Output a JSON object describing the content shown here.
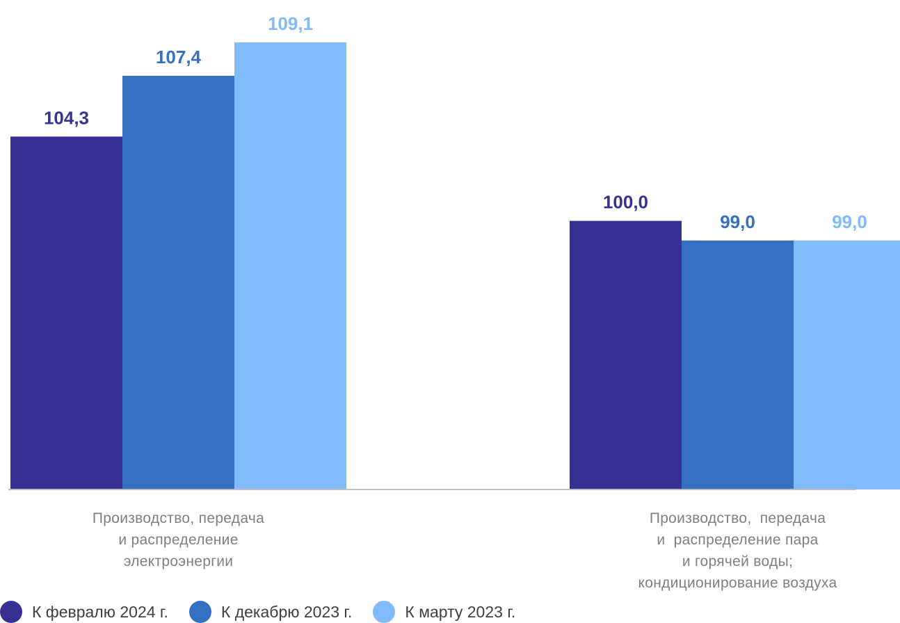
{
  "chart_data": {
    "type": "bar",
    "categories": [
      [
        "Производство, передача",
        "и распределение",
        "электроэнергии"
      ],
      [
        "Производство,  передача",
        "и  распределение пара",
        "и горячей воды;",
        "кондиционирование воздуха"
      ]
    ],
    "series": [
      {
        "name": "К февралю 2024 г.",
        "values": [
          104.3,
          100.0
        ],
        "labels": [
          "104,3",
          "100,0"
        ],
        "color": "#373195"
      },
      {
        "name": "К декабрю 2023 г.",
        "values": [
          107.4,
          99.0
        ],
        "labels": [
          "107,4",
          "99,0"
        ],
        "color": "#3570c2"
      },
      {
        "name": "К марту 2023 г.",
        "values": [
          109.1,
          99.0
        ],
        "labels": [
          "109,1",
          "99,0"
        ],
        "color": "#80bbfc"
      }
    ],
    "title": "",
    "xlabel": "",
    "ylabel": "",
    "ylim": [
      86.3,
      110.2
    ],
    "grid": false,
    "legend_position": "bottom-left",
    "axis_color": "#bfbfbf"
  }
}
